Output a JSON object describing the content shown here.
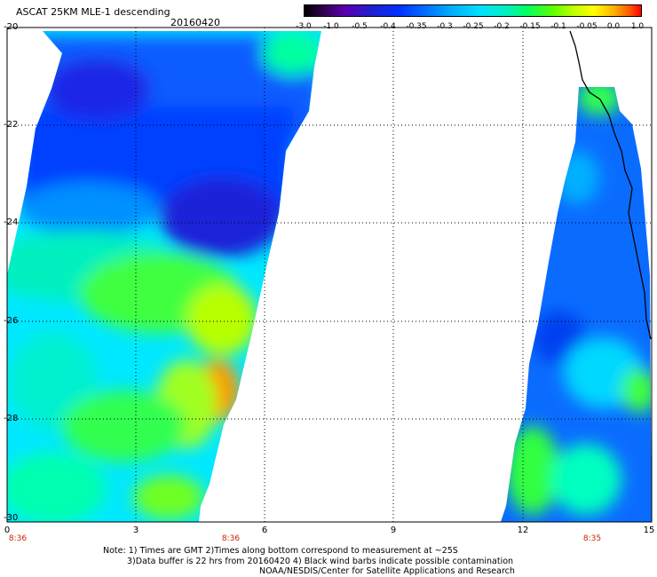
{
  "title": "ASCAT 25KM MLE-1 descending",
  "date": "20160420",
  "colorbar": {
    "labels": [
      "-3.0",
      "-1.0",
      "-0.5",
      "-0.4",
      "-0.35",
      "-0.3",
      "-0.25",
      "-0.2",
      "-0.15",
      "-0.1",
      "-0.05",
      "0.0",
      "1.0"
    ]
  },
  "axes": {
    "y_labels": [
      "-20",
      "-22",
      "-24",
      "-26",
      "-28",
      "-30"
    ],
    "x_labels": [
      "0",
      "3",
      "6",
      "9",
      "12",
      "15"
    ],
    "time_labels": [
      "8:36",
      "8:36",
      "8:35"
    ]
  },
  "notes": {
    "line1": "Note: 1) Times are GMT 2)Times along bottom correspond to measurement at ~25S",
    "line2": "3)Data buffer is 22 hrs from 20160420 4) Black wind barbs indicate possible contamination",
    "line3": "NOAA/NESDIS/Center for Satellite Applications and Research"
  },
  "map": {
    "lat_range": [
      -30,
      -20
    ],
    "lon_range": [
      0,
      15
    ],
    "gridlines": "dotted"
  }
}
